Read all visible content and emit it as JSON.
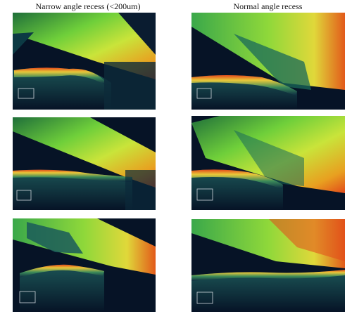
{
  "titles": {
    "left": "Narrow angle recess (<200um)",
    "right": "Normal angle recess"
  },
  "colors": {
    "background": "#061326",
    "tissue_low": "#1f6f3a",
    "tissue_mid": "#7fd23a",
    "tissue_high": "#e8e23a",
    "tissue_hot": "#e24a1a"
  }
}
